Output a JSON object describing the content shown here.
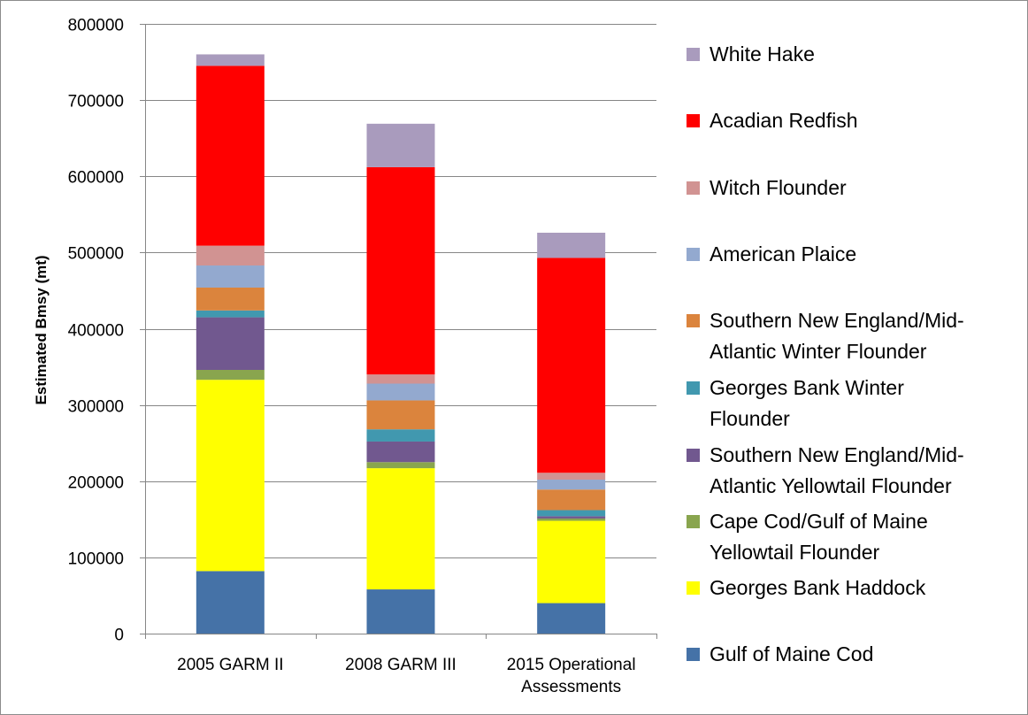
{
  "chart_data": {
    "type": "bar",
    "stacked": true,
    "title": "",
    "xlabel": "",
    "ylabel": "Estimated Bmsy (mt)",
    "ylim": [
      0,
      800000
    ],
    "yticks": [
      0,
      100000,
      200000,
      300000,
      400000,
      500000,
      600000,
      700000,
      800000
    ],
    "grid": true,
    "legend_position": "right",
    "categories": [
      [
        "2005 GARM II"
      ],
      [
        "2008 GARM III"
      ],
      [
        "2015 Operational",
        "Assessments"
      ]
    ],
    "series": [
      {
        "name": "Gulf of Maine Cod",
        "lines": [
          "Gulf of Maine Cod"
        ],
        "color": "#4572A7",
        "values": [
          82000,
          58000,
          40000
        ]
      },
      {
        "name": "Georges Bank Haddock",
        "lines": [
          "Georges Bank Haddock"
        ],
        "color": "#FFFF00",
        "values": [
          251000,
          159000,
          108000
        ]
      },
      {
        "name": "Cape Cod/Gulf of Maine Yellowtail Flounder",
        "lines": [
          "Cape Cod/Gulf of Maine",
          "Yellowtail Flounder"
        ],
        "color": "#89A54E",
        "values": [
          13000,
          8000,
          3000
        ]
      },
      {
        "name": "Southern New England/Mid-Atlantic Yellowtail Flounder",
        "lines": [
          "Southern New England/Mid-",
          "Atlantic Yellowtail Flounder"
        ],
        "color": "#71588F",
        "values": [
          69000,
          27000,
          3000
        ]
      },
      {
        "name": "Georges Bank Winter Flounder",
        "lines": [
          "Georges Bank Winter",
          "Flounder"
        ],
        "color": "#4198AF",
        "values": [
          9000,
          16000,
          8000
        ]
      },
      {
        "name": "Southern New England/Mid-Atlantic Winter Flounder",
        "lines": [
          "Southern New England/Mid-",
          "Atlantic Winter Flounder"
        ],
        "color": "#DB843D",
        "values": [
          30000,
          38000,
          27000
        ]
      },
      {
        "name": "American Plaice",
        "lines": [
          "American Plaice"
        ],
        "color": "#93A9CF",
        "values": [
          29000,
          22000,
          13000
        ]
      },
      {
        "name": "Witch Flounder",
        "lines": [
          "Witch Flounder"
        ],
        "color": "#D19392",
        "values": [
          26000,
          12000,
          9000
        ]
      },
      {
        "name": "Acadian Redfish",
        "lines": [
          "Acadian Redfish"
        ],
        "color": "#FF0000",
        "values": [
          236000,
          272000,
          282000
        ]
      },
      {
        "name": "White Hake",
        "lines": [
          "White Hake"
        ],
        "color": "#A99BBD",
        "values": [
          15000,
          57000,
          33000
        ]
      }
    ],
    "colors": {
      "grid": "#868686",
      "axis": "#868686",
      "frame": "#8c8c8c"
    }
  }
}
